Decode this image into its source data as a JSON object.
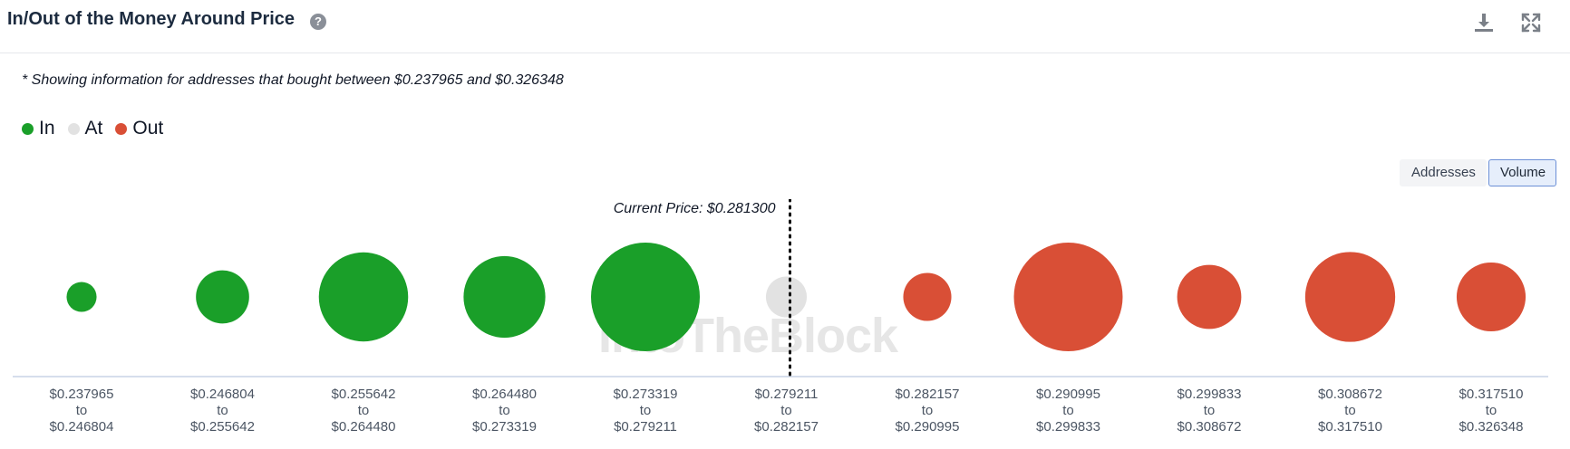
{
  "header": {
    "title": "In/Out of the Money Around Price",
    "help_icon": "question-circle-icon",
    "download_icon": "download-icon",
    "expand_icon": "expand-icon"
  },
  "note": "* Showing information for addresses that bought between $0.237965 and $0.326348",
  "legend": [
    {
      "label": "In",
      "color": "#1a9f29"
    },
    {
      "label": "At",
      "color": "#e2e2e2"
    },
    {
      "label": "Out",
      "color": "#d94f36"
    }
  ],
  "toggle": {
    "addresses_label": "Addresses",
    "volume_label": "Volume",
    "active": "Volume"
  },
  "watermark": "IntoTheBlock",
  "chart_data": {
    "type": "scatter",
    "current_price_label": "Current Price: $0.281300",
    "current_price_index": 5,
    "bubble_size_unit": "relative volume",
    "categories": [
      {
        "from": "$0.237965",
        "to": "$0.246804",
        "status": "In",
        "size": 7
      },
      {
        "from": "$0.246804",
        "to": "$0.255642",
        "status": "In",
        "size": 22
      },
      {
        "from": "$0.255642",
        "to": "$0.264480",
        "status": "In",
        "size": 62
      },
      {
        "from": "$0.264480",
        "to": "$0.273319",
        "status": "In",
        "size": 52
      },
      {
        "from": "$0.273319",
        "to": "$0.279211",
        "status": "In",
        "size": 92
      },
      {
        "from": "$0.279211",
        "to": "$0.282157",
        "status": "At",
        "size": 13
      },
      {
        "from": "$0.282157",
        "to": "$0.290995",
        "status": "Out",
        "size": 18
      },
      {
        "from": "$0.290995",
        "to": "$0.299833",
        "status": "Out",
        "size": 92
      },
      {
        "from": "$0.299833",
        "to": "$0.308672",
        "status": "Out",
        "size": 32
      },
      {
        "from": "$0.308672",
        "to": "$0.317510",
        "status": "Out",
        "size": 63
      },
      {
        "from": "$0.317510",
        "to": "$0.326348",
        "status": "Out",
        "size": 37
      }
    ],
    "range_connector": "to"
  }
}
